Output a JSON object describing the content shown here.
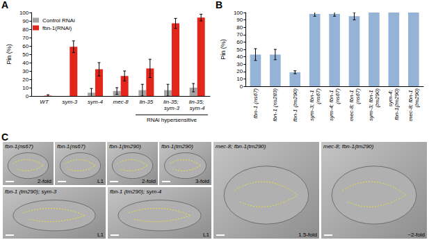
{
  "chart_data": [
    {
      "panel": "A",
      "type": "bar",
      "categories": [
        "WT",
        "sym-3",
        "sym-4",
        "mec-8",
        "lin-35",
        "lin-35; sym-3",
        "lin-35; sym-4"
      ],
      "series": [
        {
          "name": "Control RNAi",
          "color": "#a5a5a5",
          "values": [
            0,
            0,
            4,
            6,
            7,
            7,
            10
          ],
          "errors": [
            0,
            0,
            5,
            4,
            7,
            7,
            5
          ]
        },
        {
          "name": "fbn-1(RNAi)",
          "color": "#e3261b",
          "values": [
            0.5,
            59,
            32,
            24,
            33,
            87,
            94
          ],
          "errors": [
            1,
            7,
            8,
            6,
            11,
            6,
            4
          ]
        }
      ],
      "y_label": "Pin (%)",
      "ylim": [
        0,
        100
      ],
      "yticks": [
        0,
        10,
        20,
        30,
        40,
        50,
        60,
        70,
        80,
        90,
        100
      ],
      "grid": false,
      "legend": "upper left",
      "annotation": {
        "text": "RNAi hypersensitive",
        "from": "lin-35",
        "to": "lin-35; sym-4"
      }
    },
    {
      "panel": "B",
      "type": "bar",
      "categories": [
        "fbn-1 (ns67)",
        "fbn-1 (ns283)",
        "fbn-1 (tm290)",
        "sym-3; fbn-1 (ns67)",
        "sym-4; fbn-1 (ns67)",
        "mec-8; fbn-1 (ns67)",
        "sym-3; fbn-1 (tm290)",
        "sym-4; fbn-1(tm290)",
        "mec-8; fbn-1 (tm290)"
      ],
      "values": [
        43,
        43,
        19,
        98,
        98,
        95,
        100,
        100,
        100
      ],
      "errors": [
        8,
        7,
        2,
        3,
        3,
        5,
        0,
        0,
        0
      ],
      "color": "#95b3d7",
      "y_label": "Pin (%)",
      "ylim": [
        0,
        100
      ],
      "yticks": [
        0,
        10,
        20,
        30,
        40,
        50,
        60,
        70,
        80,
        90,
        100
      ],
      "grid": false
    }
  ],
  "panel_c": {
    "panel": "C",
    "images": [
      {
        "genotype": "fbn-1(ns67)",
        "stage": "2-fold"
      },
      {
        "genotype": "fbn-1(ns67)",
        "stage": "L1"
      },
      {
        "genotype": "fbn-1(tm290)",
        "stage": "2-fold"
      },
      {
        "genotype": "fbn-1(tm290)",
        "stage": "3-fold"
      },
      {
        "genotype": "mec-8; fbn-1(tm290)",
        "stage": "1.5-fold"
      },
      {
        "genotype": "mec-8; fbn-1(tm290)",
        "stage": "~2-fold"
      },
      {
        "genotype": "fbn-1 (tm290); sym-3",
        "stage": "L1"
      },
      {
        "genotype": "fbn-1 (tm290); sym-4",
        "stage": "L1"
      }
    ]
  }
}
